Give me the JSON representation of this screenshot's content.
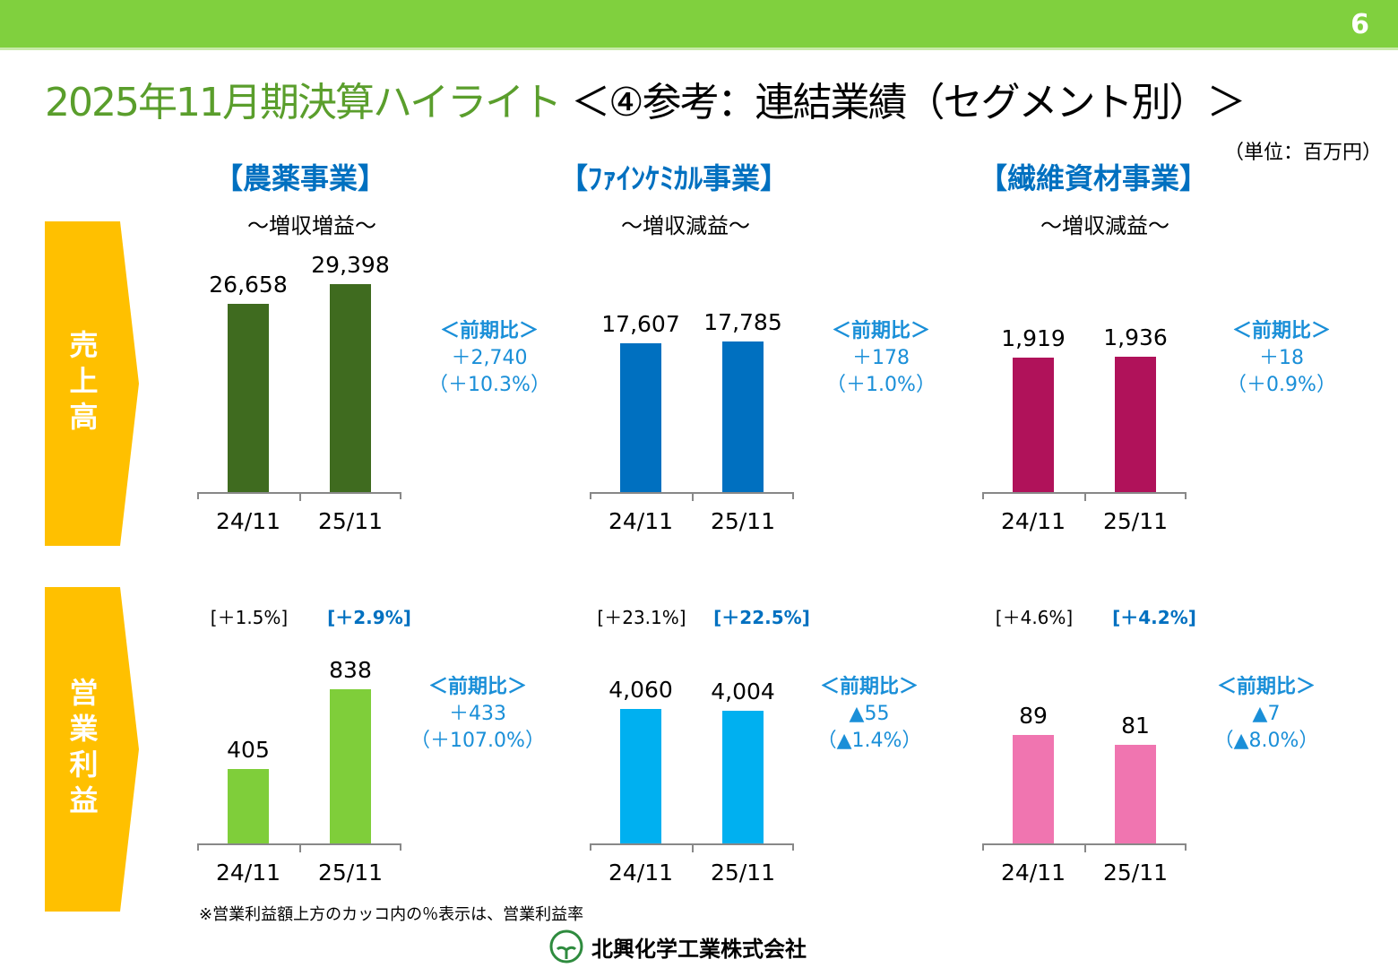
{
  "page_number": "6",
  "title_main": "2025年11月期決算ハイライト",
  "title_sub": "＜④参考：連結業績（セグメント別）＞",
  "unit": "（単位：百万円）",
  "row_labels": {
    "sales": "売上高",
    "operating_profit": "営業利益"
  },
  "compare_label": "＜前期比＞",
  "note": "※営業利益額上方のカッコ内の％表示は、営業利益率",
  "company": "北興化学工業株式会社",
  "segments": [
    {
      "name": "【農薬事業】",
      "summary": "～増収増益～",
      "sales_diff": "＋2,740",
      "sales_pct": "（＋10.3%）",
      "op_diff": "＋433",
      "op_pct": "（＋107.0%）",
      "margins": [
        "[＋1.5%]",
        "[＋2.9%]"
      ]
    },
    {
      "name": "【ﾌｧｲﾝｹﾐｶﾙ事業】",
      "summary": "～増収減益～",
      "sales_diff": "＋178",
      "sales_pct": "（＋1.0%）",
      "op_diff": "▲55",
      "op_pct": "（▲1.4%）",
      "margins": [
        "[＋23.1%]",
        "[＋22.5%]"
      ]
    },
    {
      "name": "【繊維資材事業】",
      "summary": "～増収減益～",
      "sales_diff": "＋18",
      "sales_pct": "（＋0.9%）",
      "op_diff": "▲7",
      "op_pct": "（▲8.0%）",
      "margins": [
        "[＋4.6%]",
        "[＋4.2%]"
      ]
    }
  ],
  "chart_data": [
    {
      "type": "bar",
      "segment": "農薬事業",
      "metric": "売上高",
      "categories": [
        "24/11",
        "25/11"
      ],
      "values": [
        26658,
        29398
      ],
      "labels": [
        "26,658",
        "29,398"
      ],
      "ylim": [
        0,
        38000
      ],
      "color": "#3f6b1f"
    },
    {
      "type": "bar",
      "segment": "ファインケミカル事業",
      "metric": "売上高",
      "categories": [
        "24/11",
        "25/11"
      ],
      "values": [
        17607,
        17785
      ],
      "labels": [
        "17,607",
        "17,785"
      ],
      "ylim": [
        0,
        31800
      ],
      "color": "#0070c0"
    },
    {
      "type": "bar",
      "segment": "繊維資材事業",
      "metric": "売上高",
      "categories": [
        "24/11",
        "25/11"
      ],
      "values": [
        1919,
        1936
      ],
      "labels": [
        "1,919",
        "1,936"
      ],
      "ylim": [
        0,
        3840
      ],
      "color": "#b0125a"
    },
    {
      "type": "bar",
      "segment": "農薬事業",
      "metric": "営業利益",
      "categories": [
        "24/11",
        "25/11"
      ],
      "values": [
        405,
        838
      ],
      "labels": [
        "405",
        "838"
      ],
      "ylim": [
        0,
        1460
      ],
      "color": "#7fce3a"
    },
    {
      "type": "bar",
      "segment": "ファインケミカル事業",
      "metric": "営業利益",
      "categories": [
        "24/11",
        "25/11"
      ],
      "values": [
        4060,
        4004
      ],
      "labels": [
        "4,060",
        "4,004"
      ],
      "ylim": [
        0,
        8120
      ],
      "color": "#00b0f0"
    },
    {
      "type": "bar",
      "segment": "繊維資材事業",
      "metric": "営業利益",
      "categories": [
        "24/11",
        "25/11"
      ],
      "values": [
        89,
        81
      ],
      "labels": [
        "89",
        "81"
      ],
      "ylim": [
        0,
        220
      ],
      "color": "#f075b0"
    }
  ]
}
